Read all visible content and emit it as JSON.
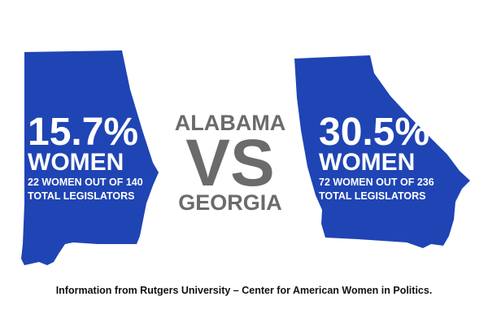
{
  "states": [
    {
      "percent": "15.7%",
      "label": "WOMEN",
      "detail": [
        "22 WOMEN OUT OF 140",
        "TOTAL LEGISLATORS"
      ]
    },
    {
      "percent": "30.5%",
      "label": "WOMEN",
      "detail": [
        "72 WOMEN OUT OF 236",
        "TOTAL LEGISLATORS"
      ]
    }
  ],
  "center": {
    "top": "ALABAMA",
    "middle": "VS",
    "bottom": "GEORGIA"
  },
  "footer": "Information from Rutgers University – Center for American Women in Politics."
}
